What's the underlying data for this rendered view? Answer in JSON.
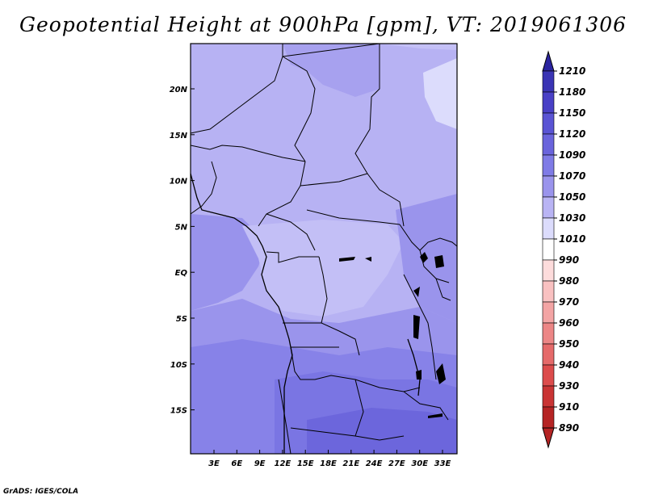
{
  "title": "Geopotential Height at 900hPa [gpm], VT: 2019061306",
  "credit": "GrADS: IGES/COLA",
  "map": {
    "lat_labels": [
      "20N",
      "15N",
      "10N",
      "5N",
      "EQ",
      "5S",
      "10S",
      "15S"
    ],
    "lon_labels": [
      "3E",
      "6E",
      "9E",
      "12E",
      "15E",
      "18E",
      "21E",
      "24E",
      "27E",
      "30E",
      "33E"
    ]
  },
  "colorbar": {
    "levels": [
      "1210",
      "1180",
      "1150",
      "1120",
      "1090",
      "1070",
      "1050",
      "1030",
      "1010",
      "990",
      "980",
      "970",
      "960",
      "950",
      "940",
      "930",
      "910",
      "890"
    ],
    "colors": [
      "#2b24a0",
      "#3a34b4",
      "#4940c6",
      "#5a54d4",
      "#6a64dc",
      "#7f7be6",
      "#9a94ec",
      "#b9b4f4",
      "#dcdcfc",
      "#ffffff",
      "#fddcdc",
      "#f9c1c1",
      "#f3a4a4",
      "#ec8686",
      "#e56a6a",
      "#dc4c4c",
      "#c93434",
      "#b52424"
    ]
  }
}
